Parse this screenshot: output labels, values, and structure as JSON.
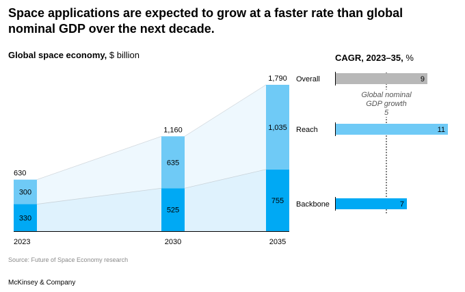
{
  "header": {
    "title": "Space applications are expected to grow at a faster rate than global nominal GDP over the next decade.",
    "subtitle_bold": "Global space economy,",
    "subtitle_unit": " $ billion",
    "cagr_bold": "CAGR, 2023–35,",
    "cagr_unit": " %"
  },
  "source": "Source: Future of Space Economy research",
  "footer": "McKinsey & Company",
  "colors": {
    "reach": "#6FCAF6",
    "backbone": "#00A9F4",
    "overall": "#B8B8B8",
    "reach_area": "#EEF8FE",
    "backbone_area": "#DFF2FD"
  },
  "chart_data": [
    {
      "type": "bar",
      "title": "Global space economy, $ billion",
      "categories": [
        "2023",
        "2030",
        "2035"
      ],
      "series": [
        {
          "name": "Backbone",
          "values": [
            330,
            525,
            755
          ]
        },
        {
          "name": "Reach",
          "values": [
            300,
            635,
            1035
          ]
        }
      ],
      "totals": [
        "630",
        "1,160",
        "1,790"
      ],
      "labels": {
        "Backbone": [
          "330",
          "525",
          "755"
        ],
        "Reach": [
          "300",
          "635",
          "1,035"
        ]
      },
      "ylim": [
        0,
        1790
      ]
    },
    {
      "type": "bar",
      "title": "CAGR, 2023–35, %",
      "categories": [
        "Overall",
        "Reach",
        "Backbone"
      ],
      "values": [
        9,
        11,
        7
      ],
      "value_labels": [
        "9",
        "11",
        "7"
      ],
      "xlim": [
        0,
        11
      ],
      "reference": {
        "label_line1": "Global nominal",
        "label_line2": "GDP growth",
        "value": 5,
        "value_label": "5"
      }
    }
  ]
}
